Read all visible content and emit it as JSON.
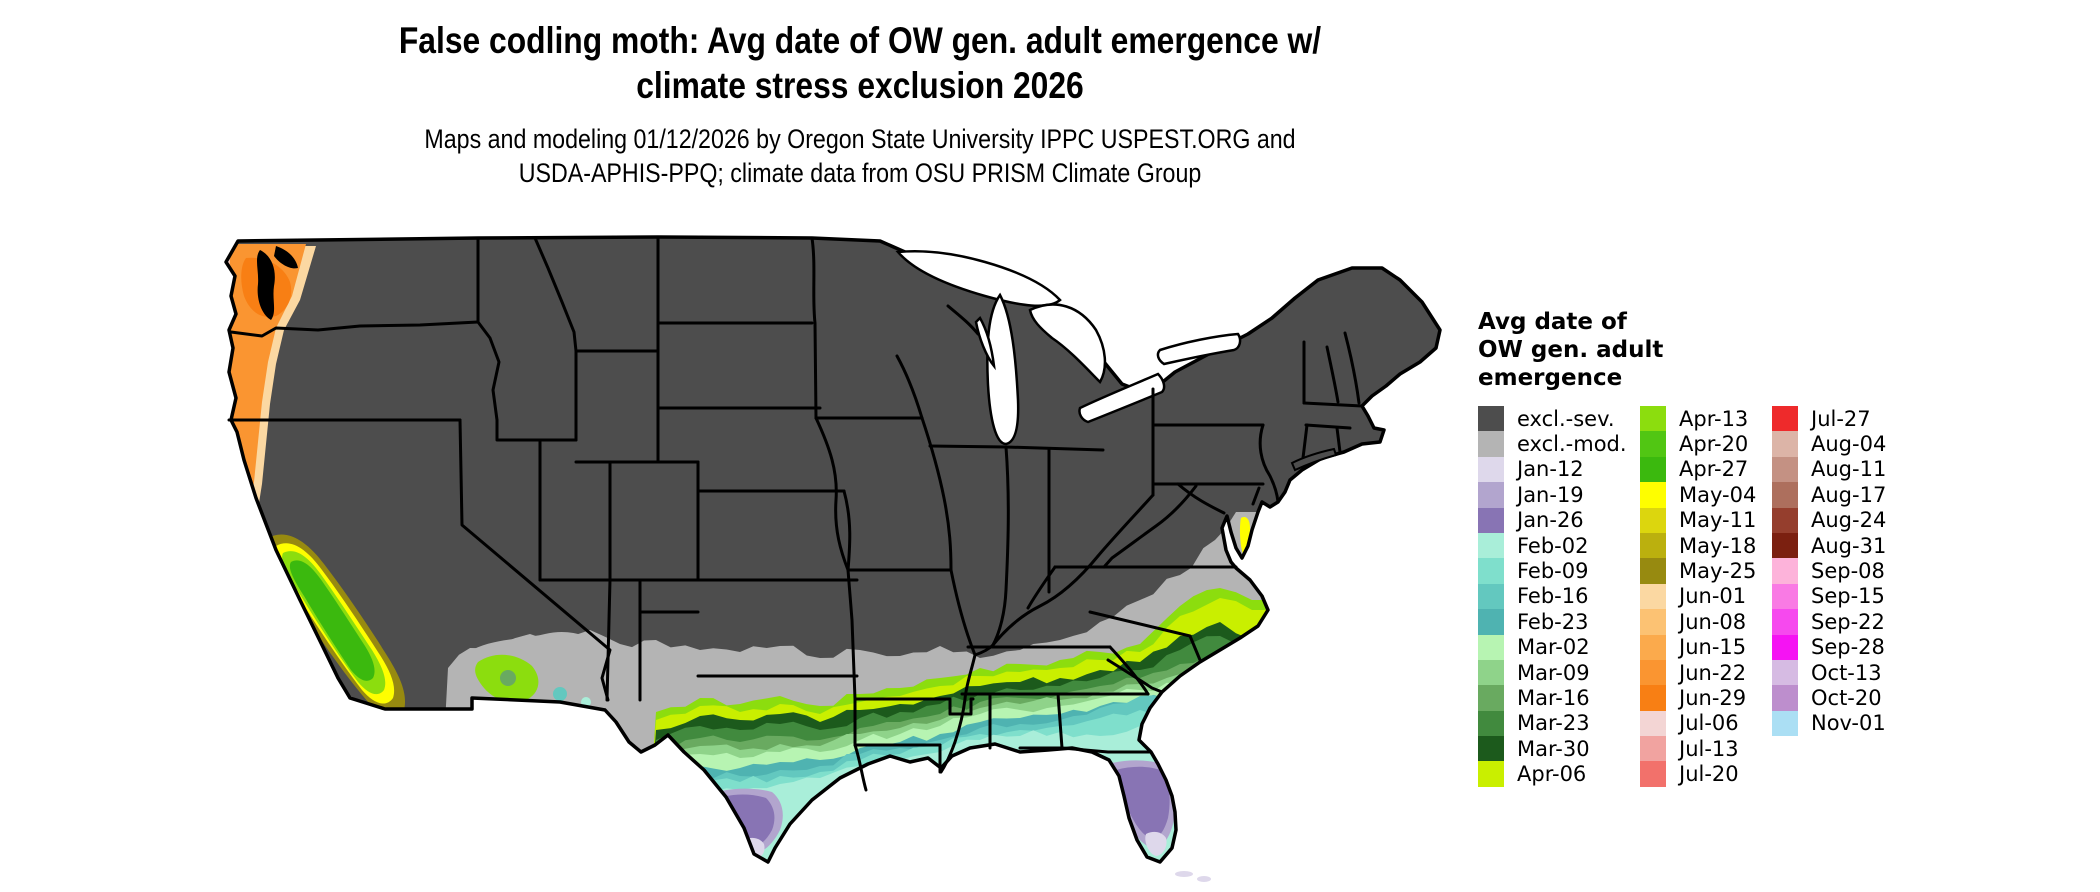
{
  "title": {
    "line1": "False codling moth: Avg date of OW gen. adult emergence w/",
    "line2": "climate stress exclusion 2026"
  },
  "subtitle": {
    "line1": "Maps and modeling 01/12/2026 by Oregon State University IPPC USPEST.ORG and",
    "line2": "USDA-APHIS-PPQ; climate data from OSU PRISM Climate Group"
  },
  "legend": {
    "title_lines": [
      "Avg date of",
      "OW gen. adult",
      "emergence"
    ],
    "columns": [
      [
        {
          "label": "excl.-sev.",
          "color": "#4d4d4d"
        },
        {
          "label": "excl.-mod.",
          "color": "#b4b4b4"
        },
        {
          "label": "Jan-12",
          "color": "#ded8eb"
        },
        {
          "label": "Jan-19",
          "color": "#b2a5ce"
        },
        {
          "label": "Jan-26",
          "color": "#8874b4"
        },
        {
          "label": "Feb-02",
          "color": "#a9eed9"
        },
        {
          "label": "Feb-09",
          "color": "#7fdfcc"
        },
        {
          "label": "Feb-16",
          "color": "#63c8bf"
        },
        {
          "label": "Feb-23",
          "color": "#4fb3b1"
        },
        {
          "label": "Mar-02",
          "color": "#b7f4b2"
        },
        {
          "label": "Mar-09",
          "color": "#8fd38a"
        },
        {
          "label": "Mar-16",
          "color": "#69aa60"
        },
        {
          "label": "Mar-23",
          "color": "#418a3e"
        },
        {
          "label": "Mar-30",
          "color": "#1c5a1c"
        },
        {
          "label": "Apr-06",
          "color": "#c9ef00"
        }
      ],
      [
        {
          "label": "Apr-13",
          "color": "#8cdd0e"
        },
        {
          "label": "Apr-20",
          "color": "#51c613"
        },
        {
          "label": "Apr-27",
          "color": "#3bb90e"
        },
        {
          "label": "May-04",
          "color": "#fefe00"
        },
        {
          "label": "May-11",
          "color": "#dcd60e"
        },
        {
          "label": "May-18",
          "color": "#bbb00e"
        },
        {
          "label": "May-25",
          "color": "#978a10"
        },
        {
          "label": "Jun-01",
          "color": "#fbd8a2"
        },
        {
          "label": "Jun-08",
          "color": "#fcc273"
        },
        {
          "label": "Jun-15",
          "color": "#fbaa4c"
        },
        {
          "label": "Jun-22",
          "color": "#fa9531"
        },
        {
          "label": "Jun-29",
          "color": "#f87f14"
        },
        {
          "label": "Jul-06",
          "color": "#f3d5d4"
        },
        {
          "label": "Jul-13",
          "color": "#f1a3a0"
        },
        {
          "label": "Jul-20",
          "color": "#f2716b"
        }
      ],
      [
        {
          "label": "Jul-27",
          "color": "#ee2a2b"
        },
        {
          "label": "Aug-04",
          "color": "#dcb4a7"
        },
        {
          "label": "Aug-11",
          "color": "#c49183"
        },
        {
          "label": "Aug-17",
          "color": "#ad6f5d"
        },
        {
          "label": "Aug-24",
          "color": "#953e2d"
        },
        {
          "label": "Aug-31",
          "color": "#7b2010"
        },
        {
          "label": "Sep-08",
          "color": "#fdb3da"
        },
        {
          "label": "Sep-15",
          "color": "#f97ae4"
        },
        {
          "label": "Sep-22",
          "color": "#f649ee"
        },
        {
          "label": "Sep-28",
          "color": "#f513f3"
        },
        {
          "label": "Oct-13",
          "color": "#d6bbe3"
        },
        {
          "label": "Oct-20",
          "color": "#bd8ecd"
        },
        {
          "label": "Nov-01",
          "color": "#abdff4"
        }
      ]
    ]
  },
  "map": {
    "description": "Continental US raster map of average date of overwintering generation adult emergence for false codling moth",
    "base_region": "excl.-sev.",
    "background_color": "#ffffff",
    "state_border_color": "#000000",
    "water_color": "#ffffff"
  }
}
